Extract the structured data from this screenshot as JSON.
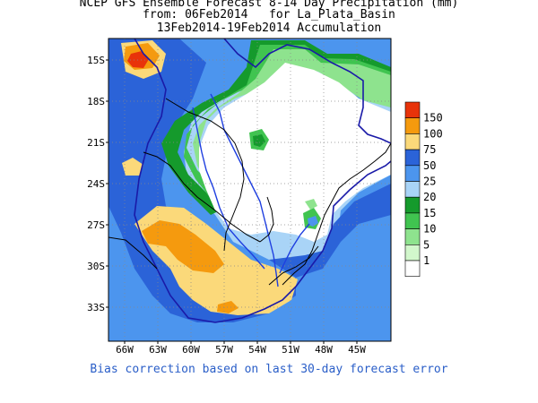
{
  "title": {
    "line1": "NCEP GFS Ensemble Forecast 8-14 Day Precipitation (mm)",
    "line2": "from: 06Feb2014   for La_Plata_Basin",
    "line3": "13Feb2014-19Feb2014 Accumulation"
  },
  "map": {
    "lat_labels": [
      "15S",
      "18S",
      "21S",
      "24S",
      "27S",
      "30S",
      "33S"
    ],
    "lon_labels": [
      "66W",
      "63W",
      "60W",
      "57W",
      "54W",
      "51W",
      "48W",
      "45W"
    ]
  },
  "legend": {
    "levels": [
      {
        "label": "150",
        "color": "#e8330a"
      },
      {
        "label": "100",
        "color": "#f59a0e"
      },
      {
        "label": "75",
        "color": "#fbd97a"
      },
      {
        "label": "50",
        "color": "#2b63d8"
      },
      {
        "label": "25",
        "color": "#4c95ee"
      },
      {
        "label": "20",
        "color": "#a9d4f7"
      },
      {
        "label": "15",
        "color": "#159a2c"
      },
      {
        "label": "10",
        "color": "#40c450"
      },
      {
        "label": "5",
        "color": "#8ee38e"
      },
      {
        "label": "1",
        "color": "#d2f7cc"
      },
      {
        "label": "",
        "color": "#ffffff"
      }
    ]
  },
  "colors": {
    "border": "#1a1aa8",
    "river": "#1f3fe0",
    "country": "#000000",
    "grid": "#888888"
  },
  "footnote": "Bias correction based on last 30-day forecast error"
}
